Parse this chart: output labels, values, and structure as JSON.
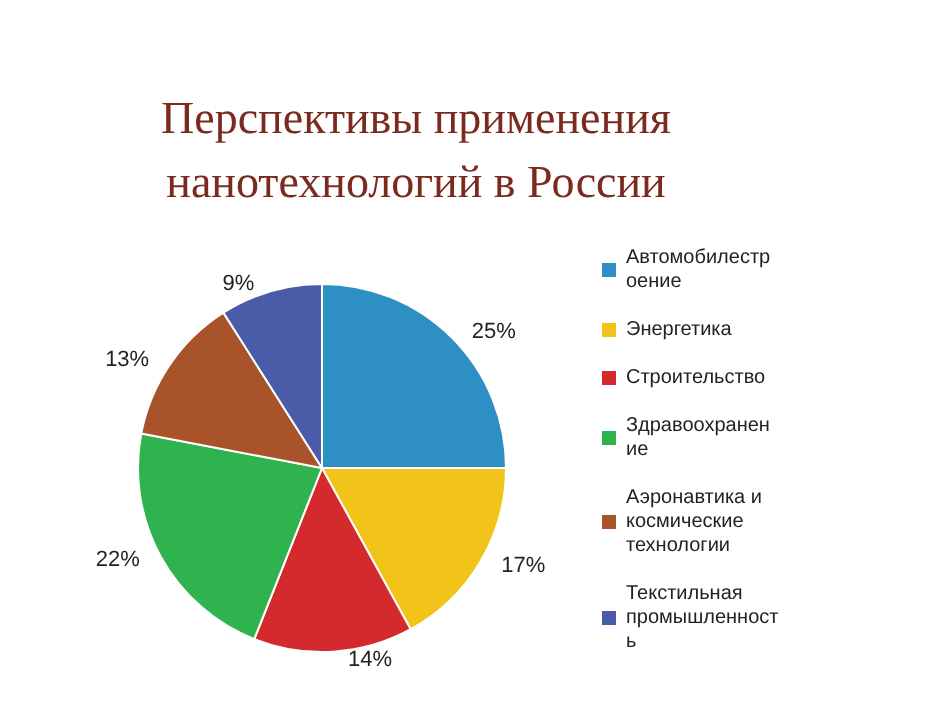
{
  "chart_data": {
    "type": "pie",
    "title": "Перспективы применения\nнанотехнологий в России",
    "categories": [
      "Автомобилестроение",
      "Энергетика",
      "Строительство",
      "Здравоохранение",
      "Аэронавтика и космические технологии",
      "Текстильная промышленность"
    ],
    "values": [
      25,
      17,
      14,
      22,
      13,
      9
    ],
    "value_labels": [
      "25%",
      "17%",
      "14%",
      "22%",
      "13%",
      "9%"
    ],
    "colors": [
      "#2e8fc4",
      "#f2c318",
      "#d42a2e",
      "#2eb34f",
      "#a8532a",
      "#4a5ba8"
    ],
    "legend": "right"
  }
}
